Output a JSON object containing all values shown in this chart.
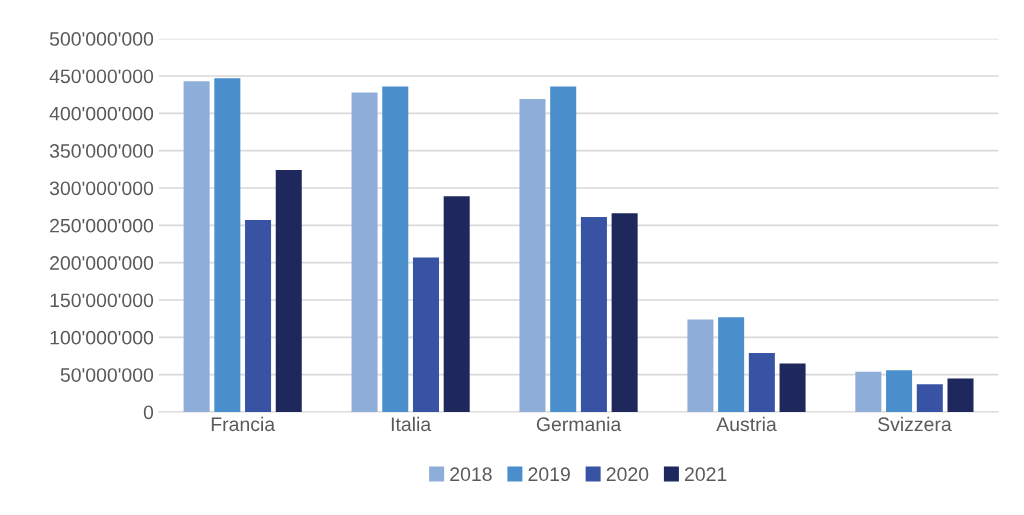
{
  "chart_data": {
    "type": "bar",
    "categories": [
      "Francia",
      "Italia",
      "Germania",
      "Austria",
      "Svizzera"
    ],
    "series": [
      {
        "name": "2018",
        "color": "#8eadd9",
        "values": [
          443000000,
          428000000,
          419000000,
          124000000,
          54000000
        ]
      },
      {
        "name": "2019",
        "color": "#4a8fcc",
        "values": [
          447000000,
          436000000,
          436000000,
          127000000,
          56000000
        ]
      },
      {
        "name": "2020",
        "color": "#3953a4",
        "values": [
          257000000,
          207000000,
          261000000,
          79000000,
          37000000
        ]
      },
      {
        "name": "2021",
        "color": "#1f285c",
        "values": [
          324000000,
          289000000,
          266000000,
          65000000,
          45000000
        ]
      }
    ],
    "ylim": [
      0,
      500000000
    ],
    "yticks": [
      {
        "value": 0,
        "label": "0"
      },
      {
        "value": 50000000,
        "label": "50'000'000"
      },
      {
        "value": 100000000,
        "label": "100'000'000"
      },
      {
        "value": 150000000,
        "label": "150'000'000"
      },
      {
        "value": 200000000,
        "label": "200'000'000"
      },
      {
        "value": 250000000,
        "label": "250'000'000"
      },
      {
        "value": 300000000,
        "label": "300'000'000"
      },
      {
        "value": 350000000,
        "label": "350'000'000"
      },
      {
        "value": 400000000,
        "label": "400'000'000"
      },
      {
        "value": 450000000,
        "label": "450'000'000"
      },
      {
        "value": 500000000,
        "label": "500'000'000"
      }
    ],
    "grid": "y",
    "legend": "bottom"
  }
}
